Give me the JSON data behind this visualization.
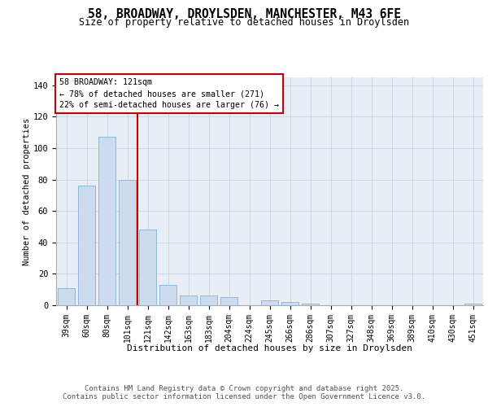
{
  "title_line1": "58, BROADWAY, DROYLSDEN, MANCHESTER, M43 6FE",
  "title_line2": "Size of property relative to detached houses in Droylsden",
  "xlabel": "Distribution of detached houses by size in Droylsden",
  "ylabel": "Number of detached properties",
  "categories": [
    "39sqm",
    "60sqm",
    "80sqm",
    "101sqm",
    "121sqm",
    "142sqm",
    "163sqm",
    "183sqm",
    "204sqm",
    "224sqm",
    "245sqm",
    "266sqm",
    "286sqm",
    "307sqm",
    "327sqm",
    "348sqm",
    "369sqm",
    "389sqm",
    "410sqm",
    "430sqm",
    "451sqm"
  ],
  "values": [
    11,
    76,
    107,
    80,
    48,
    13,
    6,
    6,
    5,
    0,
    3,
    2,
    1,
    0,
    0,
    0,
    0,
    0,
    0,
    0,
    1
  ],
  "bar_color": "#ccdcee",
  "bar_edge_color": "#8ab0cc",
  "subject_line_color": "#cc0000",
  "subject_bar_index": 4,
  "annotation_line1": "58 BROADWAY: 121sqm",
  "annotation_line2": "← 78% of detached houses are smaller (271)",
  "annotation_line3": "22% of semi-detached houses are larger (76) →",
  "annotation_box_edgecolor": "#cc0000",
  "ylim_max": 145,
  "yticks": [
    0,
    20,
    40,
    60,
    80,
    100,
    120,
    140
  ],
  "grid_color": "#c8d4e0",
  "plot_bg_color": "#e8eef6",
  "footer_line1": "Contains HM Land Registry data © Crown copyright and database right 2025.",
  "footer_line2": "Contains public sector information licensed under the Open Government Licence v3.0."
}
